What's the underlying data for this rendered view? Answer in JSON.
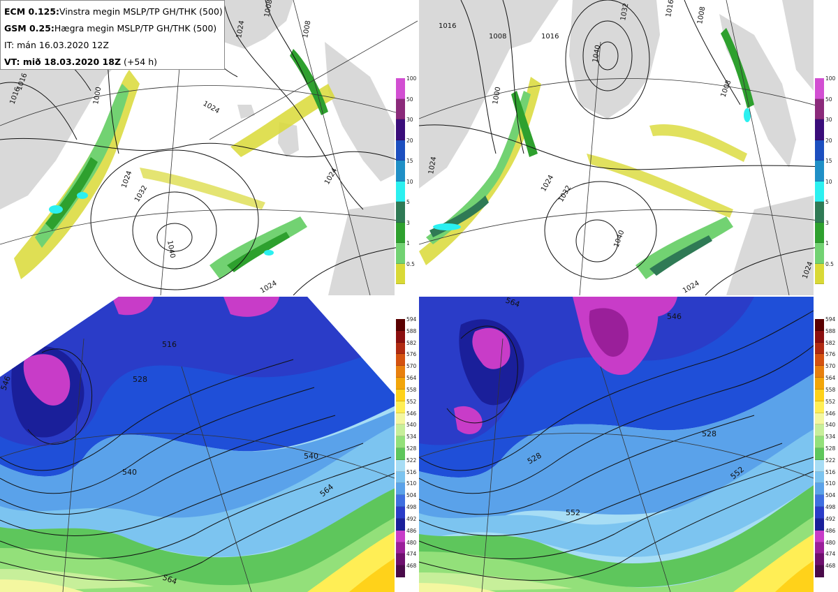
{
  "header": {
    "line1_model": "ECM 0.125:",
    "line1_desc": "Vinstra megin MSLP/TP GH/THK (500)",
    "line2_model": "GSM 0.25:",
    "line2_desc": "Hægra megin MSLP/TP GH/THK (500)",
    "line3_it": "IT: mán 16.03.2020 12Z",
    "line4_vt": "VT: mið 18.03.2020 18Z",
    "line4_lead": "(+54 h)"
  },
  "precip_legend": {
    "levels": [
      "100",
      "50",
      "30",
      "20",
      "15",
      "10",
      "5",
      "3",
      "1",
      "0.5"
    ],
    "colors": [
      "#d24fd2",
      "#8b2a7a",
      "#3a0d7a",
      "#1c4fbf",
      "#1f8fc6",
      "#2bf0f0",
      "#2f7a55",
      "#2ea02e",
      "#72d272",
      "#d9d936"
    ]
  },
  "thickness_legend": {
    "levels": [
      "594",
      "588",
      "582",
      "576",
      "570",
      "564",
      "558",
      "552",
      "546",
      "540",
      "534",
      "528",
      "522",
      "516",
      "510",
      "504",
      "498",
      "492",
      "486",
      "480",
      "474",
      "468"
    ],
    "colors": [
      "#5a0000",
      "#8b0f0f",
      "#b02a12",
      "#d45210",
      "#e8800e",
      "#f2a50a",
      "#ffd21a",
      "#ffee55",
      "#f4f7a0",
      "#c7ef9a",
      "#93e07a",
      "#5ec65c",
      "#a7ddf5",
      "#7cc4f0",
      "#5aa2ea",
      "#3f6fe0",
      "#2a3cc8",
      "#1a1f9a",
      "#c83cc8",
      "#9a1f9a",
      "#6e0f6e",
      "#4a0a4a"
    ]
  },
  "map_labels": {
    "ecm_mslp": [
      "1016",
      "1024",
      "1000",
      "1008",
      "1024",
      "1024",
      "1032",
      "1040",
      "1024",
      "1016",
      "1024",
      "1008"
    ],
    "gsm_mslp": [
      "1024",
      "1008",
      "1016",
      "1040",
      "1032",
      "1016",
      "1008",
      "1000",
      "1024",
      "1032",
      "1040",
      "1024",
      "1008",
      "1016",
      "1024"
    ],
    "ecm_thk": [
      "516",
      "528",
      "540",
      "540",
      "564",
      "564",
      "546"
    ],
    "gsm_thk": [
      "564",
      "546",
      "528",
      "528",
      "552",
      "552"
    ]
  },
  "colors": {
    "land": "#d9d9d9",
    "sea": "#ffffff",
    "coast": "#555555"
  }
}
